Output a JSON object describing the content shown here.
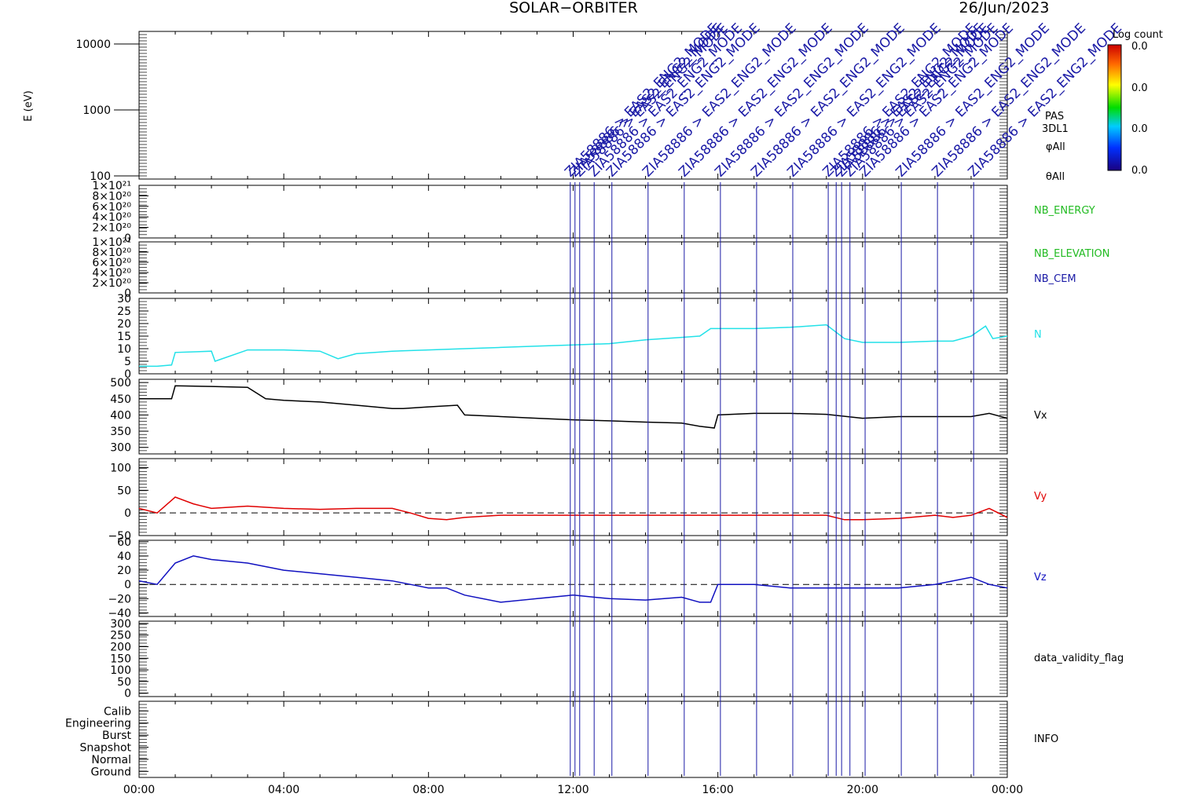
{
  "header": {
    "mission": "SOLAR−ORBITER",
    "date": "26/Jun/2023"
  },
  "colors": {
    "axis": "#000000",
    "event": "#1a1aa6",
    "n": "#22e1e8",
    "vx": "#000000",
    "vy": "#e00000",
    "vz": "#1010c0",
    "nb_green": "#22bb22",
    "nb_cem": "#1a1aa6"
  },
  "time_axis": {
    "ticks": [
      "00:00",
      "04:00",
      "08:00",
      "12:00",
      "16:00",
      "20:00",
      "00:00"
    ],
    "range_hours": [
      0,
      24
    ]
  },
  "spectrogram": {
    "ylabel": "E (eV)",
    "yticks": [
      "100",
      "1000",
      "10000"
    ],
    "side_labels": [
      "PAS",
      "3DL1",
      "φAll",
      "θAll"
    ],
    "colorbar": {
      "title": "Log count",
      "ticks": [
        "0.0",
        "0.0",
        "0.0",
        "0.0"
      ]
    }
  },
  "event_markers": {
    "times_hours": [
      11.92,
      12.05,
      12.18,
      12.58,
      13.07,
      14.07,
      15.07,
      16.07,
      17.07,
      18.07,
      19.05,
      19.27,
      19.42,
      19.65,
      20.07,
      21.07,
      22.07,
      23.07
    ],
    "annotations": [
      {
        "t": 11.92,
        "text": "ZIA58886 > EAS2_ENG2_MODE"
      },
      {
        "t": 12.05,
        "text": "ZIA58886 > EAS2_ENG2_MODE"
      },
      {
        "t": 12.18,
        "text": "ZIA58886 > EAS2_ENG2_MODE"
      },
      {
        "t": 12.58,
        "text": "ZIA58886 > EAS2_ENG2_MODE"
      },
      {
        "t": 13.07,
        "text": "ZIA58886 > EAS2_ENG2_MODE"
      },
      {
        "t": 14.07,
        "text": "ZIA58886 > EAS2_ENG2_MODE"
      },
      {
        "t": 15.07,
        "text": "ZIA58886 > EAS2_ENG2_MODE"
      },
      {
        "t": 16.07,
        "text": "ZIA58886 > EAS2_ENG2_MODE"
      },
      {
        "t": 17.07,
        "text": "ZIA58886 > EAS2_ENG2_MODE"
      },
      {
        "t": 18.07,
        "text": "ZIA58886 > EAS2_ENG2_MODE"
      },
      {
        "t": 19.05,
        "text": "ZIA58886 > EAS2_ENG2_MODE"
      },
      {
        "t": 19.27,
        "text": "ZIA58886 > EAS2_ENG2_MODE"
      },
      {
        "t": 19.42,
        "text": "ZIA58886 > EAS2_ENG2_MODE"
      },
      {
        "t": 19.65,
        "text": "ZIA58886 > EAS2_ENG2_MODE"
      },
      {
        "t": 20.07,
        "text": "ZIA58886 > EAS2_ENG2_MODE"
      },
      {
        "t": 21.07,
        "text": "ZIA58886 > EAS2_ENG2_MODE"
      },
      {
        "t": 22.07,
        "text": "ZIA58886 > EAS2_ENG2_MODE"
      },
      {
        "t": 23.07,
        "text": "ZIA58886 > EAS2_ENG2_MODE"
      }
    ]
  },
  "panels": {
    "nb_energy": {
      "label": "NB_ENERGY",
      "ticks": [
        {
          "v": 0,
          "t": "0"
        },
        {
          "v": 2,
          "t": "2×10²⁰"
        },
        {
          "v": 4,
          "t": "4×10²⁰"
        },
        {
          "v": 6,
          "t": "6×10²⁰"
        },
        {
          "v": 8,
          "t": "8×10²⁰"
        },
        {
          "v": 10,
          "t": "1×10²¹"
        }
      ]
    },
    "nb_elevation": {
      "label": "NB_ELEVATION",
      "label2": "NB_CEM",
      "ticks": [
        {
          "v": 0,
          "t": "0"
        },
        {
          "v": 2,
          "t": "2×10²⁰"
        },
        {
          "v": 4,
          "t": "4×10²⁰"
        },
        {
          "v": 6,
          "t": "6×10²⁰"
        },
        {
          "v": 8,
          "t": "8×10²⁰"
        },
        {
          "v": 10,
          "t": "1×10²¹"
        }
      ]
    },
    "n": {
      "label": "N",
      "ticks": [
        "0",
        "5",
        "10",
        "15",
        "20",
        "25",
        "30"
      ]
    },
    "vx": {
      "label": "Vx",
      "ticks": [
        "300",
        "350",
        "400",
        "450",
        "500"
      ]
    },
    "vy": {
      "label": "Vy",
      "ticks": [
        "−50",
        "0",
        "50",
        "100"
      ]
    },
    "vz": {
      "label": "Vz",
      "ticks": [
        "−40",
        "−20",
        "0",
        "20",
        "40",
        "60"
      ]
    },
    "validity": {
      "label": "data_validity_flag",
      "ticks": [
        "0",
        "50",
        "100",
        "150",
        "200",
        "250",
        "300"
      ]
    },
    "info": {
      "label": "INFO",
      "ticks": [
        "Ground",
        "Normal",
        "Snapshot",
        "Burst",
        "Engineering",
        "Calib"
      ]
    }
  },
  "chart_data": {
    "type": "line",
    "x_unit": "hours",
    "x_range": [
      0,
      24
    ],
    "series": [
      {
        "name": "N",
        "ylim": [
          0,
          30
        ],
        "x": [
          0,
          0.5,
          0.9,
          1,
          2,
          2.1,
          3,
          4,
          5,
          5.5,
          6,
          7,
          8,
          9,
          10,
          11,
          12,
          13,
          14,
          15,
          15.5,
          15.8,
          16,
          17,
          18,
          19,
          19.5,
          20,
          21,
          22,
          22.5,
          23,
          23.4,
          23.6,
          24
        ],
        "y": [
          3,
          3,
          3.5,
          8.5,
          9,
          5,
          9.5,
          9.5,
          9,
          6,
          8,
          9,
          9.5,
          10,
          10.5,
          11,
          11.5,
          12,
          13.5,
          14.5,
          15,
          18,
          18,
          18,
          18.5,
          19.5,
          14,
          12.5,
          12.5,
          13,
          13,
          15,
          19,
          14,
          15
        ]
      },
      {
        "name": "Vx",
        "ylim": [
          280,
          510
        ],
        "x": [
          0,
          0.9,
          1,
          2,
          3,
          3.5,
          4,
          5,
          6,
          7,
          7.3,
          8,
          8.8,
          9,
          10,
          11,
          12,
          13,
          14,
          15,
          15.5,
          15.9,
          16,
          17,
          18,
          19,
          20,
          21,
          22,
          23,
          23.5,
          24
        ],
        "y": [
          450,
          450,
          490,
          488,
          485,
          450,
          445,
          440,
          430,
          420,
          420,
          425,
          430,
          400,
          395,
          390,
          385,
          382,
          378,
          375,
          365,
          360,
          400,
          405,
          405,
          402,
          390,
          395,
          395,
          395,
          405,
          390
        ]
      },
      {
        "name": "Vy",
        "ylim": [
          -50,
          120
        ],
        "x": [
          0,
          0.5,
          1,
          1.5,
          2,
          3,
          4,
          5,
          6,
          7,
          7.5,
          8,
          8.5,
          9,
          10,
          11,
          12,
          13,
          14,
          15,
          16,
          17,
          18,
          19,
          19.5,
          20,
          21,
          22,
          22.5,
          23,
          23.5,
          24
        ],
        "y": [
          10,
          0,
          35,
          20,
          10,
          15,
          10,
          8,
          10,
          10,
          0,
          -12,
          -15,
          -10,
          -5,
          -5,
          -5,
          -5,
          -5,
          -5,
          -5,
          -5,
          -5,
          -5,
          -15,
          -15,
          -12,
          -5,
          -10,
          -5,
          10,
          -10
        ]
      },
      {
        "name": "Vz",
        "ylim": [
          -45,
          62
        ],
        "x": [
          0,
          0.5,
          1,
          1.5,
          2,
          3,
          4,
          5,
          6,
          7,
          7.5,
          8,
          8.5,
          9,
          10,
          11,
          12,
          13,
          14,
          15,
          15.5,
          15.8,
          16,
          17,
          18,
          19,
          20,
          21,
          22,
          23,
          23.5,
          24
        ],
        "y": [
          5,
          0,
          30,
          40,
          35,
          30,
          20,
          15,
          10,
          5,
          0,
          -5,
          -5,
          -15,
          -25,
          -20,
          -15,
          -20,
          -22,
          -18,
          -25,
          -25,
          0,
          0,
          -5,
          -5,
          -5,
          -5,
          0,
          10,
          0,
          -5
        ]
      }
    ]
  }
}
